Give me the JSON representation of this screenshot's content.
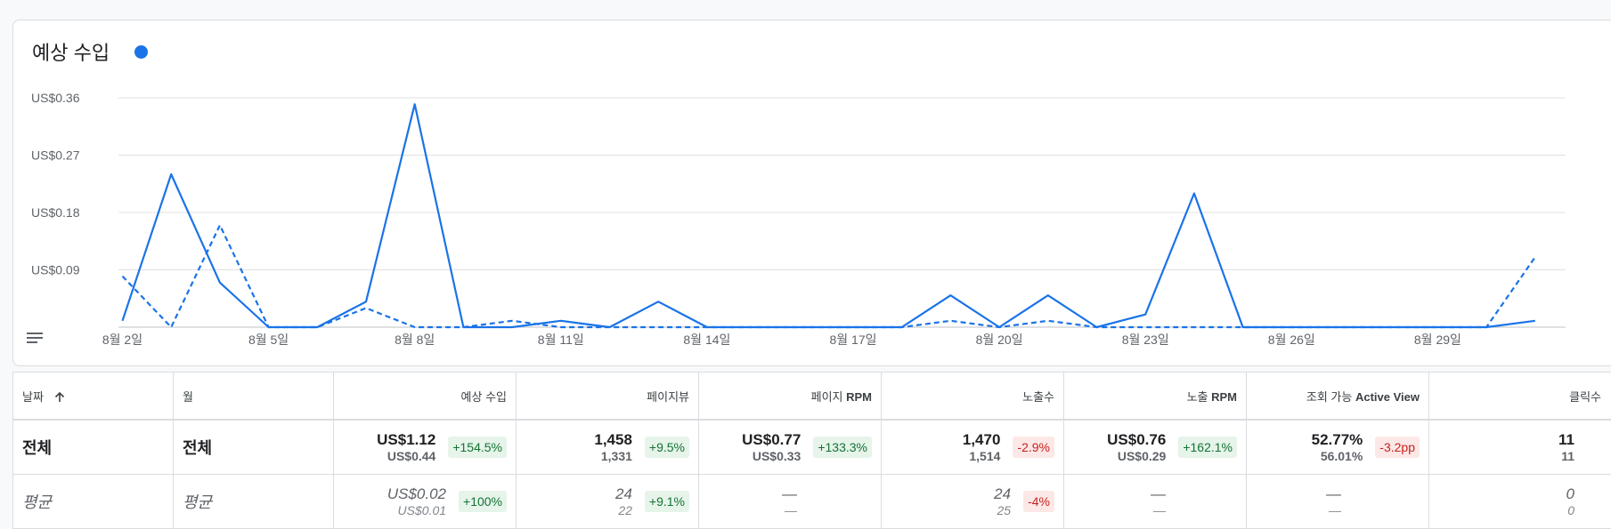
{
  "chart_card": {
    "title": "예상 수입",
    "legend_color": "#1a73e8"
  },
  "chart_data": {
    "type": "line",
    "title": "예상 수입",
    "xlabel": "",
    "ylabel": "",
    "ylim": [
      0,
      0.36
    ],
    "y_ticks": [
      "US$0.09",
      "US$0.18",
      "US$0.27",
      "US$0.36"
    ],
    "y_tick_values": [
      0.09,
      0.18,
      0.27,
      0.36
    ],
    "x_ticks": [
      "8월 2일",
      "8월 5일",
      "8월 8일",
      "8월 11일",
      "8월 14일",
      "8월 17일",
      "8월 20일",
      "8월 23일",
      "8월 26일",
      "8월 29일"
    ],
    "x_tick_days": [
      2,
      5,
      8,
      11,
      14,
      17,
      20,
      23,
      26,
      29
    ],
    "x_days": [
      2,
      3,
      4,
      5,
      6,
      7,
      8,
      9,
      10,
      11,
      12,
      13,
      14,
      15,
      16,
      17,
      18,
      19,
      20,
      21,
      22,
      23,
      24,
      25,
      26,
      27,
      28,
      29,
      30,
      31
    ],
    "grid": true,
    "series": [
      {
        "style": "solid",
        "color": "#1a73e8",
        "values": [
          0.01,
          0.24,
          0.07,
          0,
          0,
          0.04,
          0.35,
          0,
          0,
          0.01,
          0,
          0.04,
          0,
          0,
          0,
          0,
          0,
          0.05,
          0,
          0.05,
          0,
          0.02,
          0.21,
          0,
          0,
          0,
          0,
          0,
          0,
          0.01
        ]
      },
      {
        "style": "dashed",
        "color": "#1a73e8",
        "values": [
          0.08,
          0,
          0.16,
          0,
          0,
          0.03,
          0,
          0,
          0.01,
          0,
          0,
          0,
          0,
          0,
          0,
          0,
          0,
          0.01,
          0,
          0.01,
          0,
          0,
          0,
          0,
          0,
          0,
          0,
          0,
          0,
          0.11
        ]
      }
    ]
  },
  "table": {
    "headers": {
      "date": "날짜",
      "month": "월",
      "revenue": "예상 수입",
      "pageviews": "페이지뷰",
      "page_rpm_a": "페이지 ",
      "page_rpm_b": "RPM",
      "impressions": "노출수",
      "imp_rpm_a": "노출 ",
      "imp_rpm_b": "RPM",
      "active_view_a": "조회 가능 ",
      "active_view_b": "Active View",
      "clicks": "클릭수"
    },
    "total": {
      "date": "전체",
      "month": "전체",
      "revenue": {
        "v1": "US$1.12",
        "v2": "US$0.44",
        "delta": "+154.5%"
      },
      "pageviews": {
        "v1": "1,458",
        "v2": "1,331",
        "delta": "+9.5%"
      },
      "page_rpm": {
        "v1": "US$0.77",
        "v2": "US$0.33",
        "delta": "+133.3%"
      },
      "impressions": {
        "v1": "1,470",
        "v2": "1,514",
        "delta": "-2.9%"
      },
      "imp_rpm": {
        "v1": "US$0.76",
        "v2": "US$0.29",
        "delta": "+162.1%"
      },
      "active_view": {
        "v1": "52.77%",
        "v2": "56.01%",
        "delta": "-3.2pp"
      },
      "clicks": {
        "v1": "11",
        "v2": "11"
      }
    },
    "average": {
      "date": "평균",
      "month": "평균",
      "revenue": {
        "v1": "US$0.02",
        "v2": "US$0.01",
        "delta": "+100%"
      },
      "pageviews": {
        "v1": "24",
        "v2": "22",
        "delta": "+9.1%"
      },
      "page_rpm": {
        "v1": "—",
        "v2": "—"
      },
      "impressions": {
        "v1": "24",
        "v2": "25",
        "delta": "-4%"
      },
      "imp_rpm": {
        "v1": "—",
        "v2": "—"
      },
      "active_view": {
        "v1": "—",
        "v2": "—"
      },
      "clicks": {
        "v1": "0",
        "v2": "0"
      }
    }
  }
}
